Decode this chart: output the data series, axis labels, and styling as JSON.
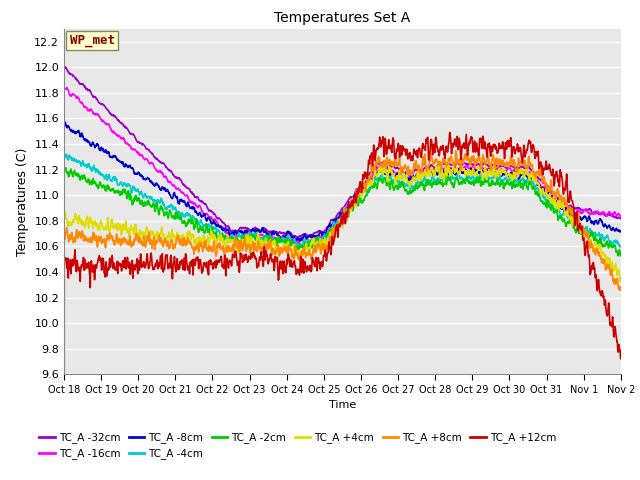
{
  "title": "Temperatures Set A",
  "xlabel": "Time",
  "ylabel": "Temperatures (C)",
  "ylim": [
    9.6,
    12.3
  ],
  "annotation": "WP_met",
  "annotation_color": "#8B0000",
  "annotation_bg": "#FFFFCC",
  "plot_bg": "#E8E8E8",
  "x_ticks": [
    "Oct 18",
    "Oct 19",
    "Oct 20",
    "Oct 21",
    "Oct 22",
    "Oct 23",
    "Oct 24",
    "Oct 25",
    "Oct 26",
    "Oct 27",
    "Oct 28",
    "Oct 29",
    "Oct 30",
    "Oct 31",
    "Nov 1",
    "Nov 2"
  ],
  "series": [
    {
      "label": "TC_A -32cm",
      "color": "#9900CC",
      "lw": 1.2
    },
    {
      "label": "TC_A -16cm",
      "color": "#FF00FF",
      "lw": 1.2
    },
    {
      "label": "TC_A -8cm",
      "color": "#0000CC",
      "lw": 1.2
    },
    {
      "label": "TC_A -4cm",
      "color": "#00CCCC",
      "lw": 1.2
    },
    {
      "label": "TC_A -2cm",
      "color": "#00CC00",
      "lw": 1.2
    },
    {
      "label": "TC_A +4cm",
      "color": "#DDDD00",
      "lw": 1.2
    },
    {
      "label": "TC_A +8cm",
      "color": "#FF8800",
      "lw": 1.2
    },
    {
      "label": "TC_A +12cm",
      "color": "#CC0000",
      "lw": 1.2
    }
  ],
  "n_days": 15,
  "n_pts_per_day": 144,
  "seed": 17
}
